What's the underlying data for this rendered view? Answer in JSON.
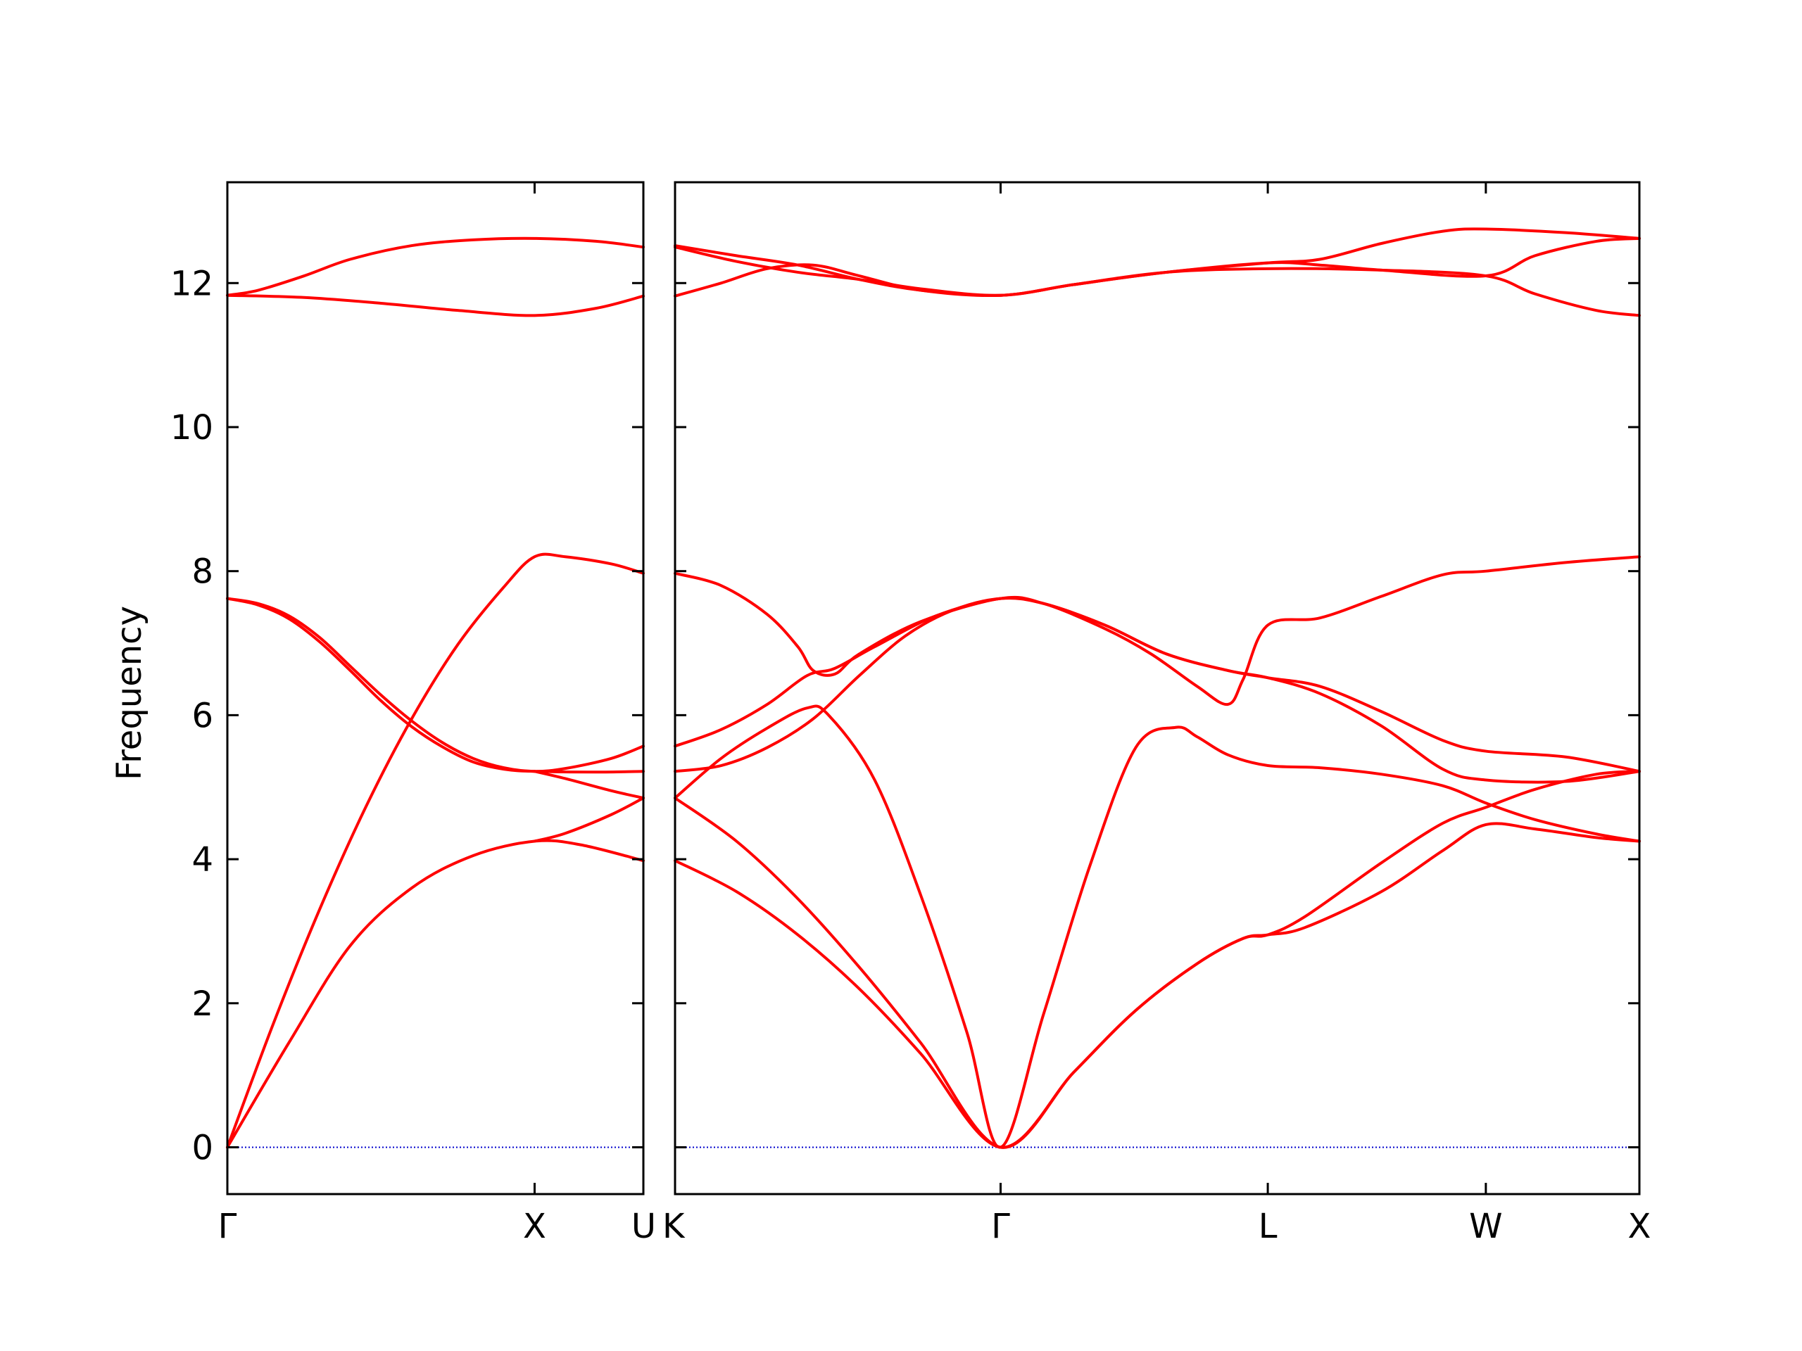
{
  "chart_data": {
    "type": "line",
    "ylabel": "Frequency",
    "ylim": [
      -0.65,
      13.4
    ],
    "yticks": [
      0,
      2,
      4,
      6,
      8,
      10,
      12
    ],
    "colors": {
      "band": "#ff0000",
      "zero_line": "#0000cc",
      "axes": "#000000"
    },
    "grid": false,
    "panels": [
      {
        "name": "panel-left",
        "xlim": [
          0,
          1.354
        ],
        "ticks": [
          {
            "x": 0,
            "label": "Γ"
          },
          {
            "x": 1.0,
            "label": "X"
          },
          {
            "x": 1.354,
            "label": "U"
          }
        ],
        "bands": [
          [
            [
              0,
              0
            ],
            [
              0.15,
              1.72
            ],
            [
              0.3,
              3.3
            ],
            [
              0.45,
              4.72
            ],
            [
              0.6,
              5.95
            ],
            [
              0.75,
              6.98
            ],
            [
              0.9,
              7.78
            ],
            [
              1.0,
              8.2
            ],
            [
              1.1,
              8.2
            ],
            [
              1.25,
              8.1
            ],
            [
              1.354,
              7.97
            ]
          ],
          [
            [
              0,
              0
            ],
            [
              0.2,
              1.45
            ],
            [
              0.4,
              2.8
            ],
            [
              0.6,
              3.6
            ],
            [
              0.8,
              4.05
            ],
            [
              1.0,
              4.25
            ],
            [
              1.15,
              4.2
            ],
            [
              1.354,
              3.98
            ]
          ],
          [
            [
              0,
              7.62
            ],
            [
              0.1,
              7.55
            ],
            [
              0.2,
              7.38
            ],
            [
              0.3,
              7.08
            ],
            [
              0.4,
              6.68
            ],
            [
              0.5,
              6.28
            ],
            [
              0.6,
              5.92
            ],
            [
              0.7,
              5.62
            ],
            [
              0.8,
              5.4
            ],
            [
              0.9,
              5.27
            ],
            [
              1.0,
              5.22
            ],
            [
              1.1,
              5.26
            ],
            [
              1.25,
              5.4
            ],
            [
              1.354,
              5.57
            ]
          ],
          [
            [
              0,
              7.62
            ],
            [
              0.1,
              7.53
            ],
            [
              0.2,
              7.34
            ],
            [
              0.3,
              7.02
            ],
            [
              0.4,
              6.62
            ],
            [
              0.5,
              6.2
            ],
            [
              0.6,
              5.84
            ],
            [
              0.7,
              5.56
            ],
            [
              0.8,
              5.35
            ],
            [
              0.9,
              5.25
            ],
            [
              1.0,
              5.22
            ],
            [
              1.2,
              5.21
            ],
            [
              1.354,
              5.22
            ]
          ],
          [
            [
              0,
              11.83
            ],
            [
              0.25,
              11.8
            ],
            [
              0.5,
              11.72
            ],
            [
              0.75,
              11.62
            ],
            [
              1.0,
              11.55
            ],
            [
              1.2,
              11.65
            ],
            [
              1.354,
              11.82
            ]
          ],
          [
            [
              0,
              11.83
            ],
            [
              0.1,
              11.9
            ],
            [
              0.25,
              12.1
            ],
            [
              0.4,
              12.33
            ],
            [
              0.6,
              12.52
            ],
            [
              0.8,
              12.6
            ],
            [
              1.0,
              12.62
            ],
            [
              1.2,
              12.58
            ],
            [
              1.354,
              12.5
            ]
          ]
        ],
        "extra_lines": [
          [
            [
              1.0,
              4.25
            ],
            [
              1.1,
              4.36
            ],
            [
              1.25,
              4.62
            ],
            [
              1.354,
              4.85
            ]
          ],
          [
            [
              1.0,
              5.22
            ],
            [
              1.1,
              5.12
            ],
            [
              1.25,
              4.95
            ],
            [
              1.354,
              4.85
            ]
          ]
        ]
      },
      {
        "name": "panel-right",
        "xlim": [
          0,
          3.14
        ],
        "ticks": [
          {
            "x": 0,
            "label": "K"
          },
          {
            "x": 1.06,
            "label": "Γ"
          },
          {
            "x": 1.93,
            "label": "L"
          },
          {
            "x": 2.64,
            "label": "W"
          },
          {
            "x": 3.14,
            "label": "X"
          }
        ],
        "bands": [
          [
            [
              0,
              3.98
            ],
            [
              0.2,
              3.55
            ],
            [
              0.4,
              2.95
            ],
            [
              0.6,
              2.2
            ],
            [
              0.8,
              1.3
            ],
            [
              1.06,
              0
            ],
            [
              1.3,
              1.05
            ],
            [
              1.5,
              1.9
            ],
            [
              1.7,
              2.55
            ],
            [
              1.85,
              2.9
            ],
            [
              1.93,
              2.95
            ],
            [
              2.05,
              3.05
            ],
            [
              2.3,
              3.55
            ],
            [
              2.5,
              4.12
            ],
            [
              2.64,
              4.48
            ],
            [
              2.8,
              4.42
            ],
            [
              3.0,
              4.3
            ],
            [
              3.14,
              4.25
            ]
          ],
          [
            [
              0,
              4.85
            ],
            [
              0.2,
              4.25
            ],
            [
              0.4,
              3.45
            ],
            [
              0.6,
              2.5
            ],
            [
              0.8,
              1.45
            ],
            [
              1.06,
              0
            ],
            [
              1.3,
              1.05
            ],
            [
              1.5,
              1.9
            ],
            [
              1.7,
              2.55
            ],
            [
              1.85,
              2.9
            ],
            [
              1.93,
              2.95
            ],
            [
              2.05,
              3.2
            ],
            [
              2.3,
              3.95
            ],
            [
              2.5,
              4.5
            ],
            [
              2.64,
              4.72
            ],
            [
              2.8,
              4.97
            ],
            [
              3.0,
              5.18
            ],
            [
              3.14,
              5.22
            ]
          ],
          [
            [
              0,
              4.85
            ],
            [
              0.15,
              5.4
            ],
            [
              0.3,
              5.82
            ],
            [
              0.43,
              6.1
            ],
            [
              0.5,
              6.0
            ],
            [
              0.65,
              5.1
            ],
            [
              0.8,
              3.5
            ],
            [
              0.95,
              1.6
            ],
            [
              1.06,
              0
            ],
            [
              1.2,
              1.85
            ],
            [
              1.35,
              3.9
            ],
            [
              1.5,
              5.55
            ],
            [
              1.63,
              5.83
            ],
            [
              1.7,
              5.7
            ],
            [
              1.8,
              5.45
            ],
            [
              1.93,
              5.3
            ],
            [
              2.1,
              5.27
            ],
            [
              2.3,
              5.18
            ],
            [
              2.5,
              5.02
            ],
            [
              2.64,
              4.78
            ],
            [
              2.8,
              4.55
            ],
            [
              3.0,
              4.35
            ],
            [
              3.14,
              4.25
            ]
          ],
          [
            [
              0,
              5.22
            ],
            [
              0.15,
              5.3
            ],
            [
              0.3,
              5.55
            ],
            [
              0.45,
              5.95
            ],
            [
              0.6,
              6.55
            ],
            [
              0.75,
              7.1
            ],
            [
              0.9,
              7.45
            ],
            [
              1.06,
              7.62
            ],
            [
              1.2,
              7.55
            ],
            [
              1.4,
              7.25
            ],
            [
              1.6,
              6.85
            ],
            [
              1.8,
              6.62
            ],
            [
              1.93,
              6.52
            ],
            [
              2.1,
              6.3
            ],
            [
              2.3,
              5.85
            ],
            [
              2.5,
              5.25
            ],
            [
              2.64,
              5.1
            ],
            [
              2.9,
              5.08
            ],
            [
              3.14,
              5.22
            ]
          ],
          [
            [
              0,
              5.57
            ],
            [
              0.15,
              5.8
            ],
            [
              0.3,
              6.15
            ],
            [
              0.43,
              6.55
            ],
            [
              0.52,
              6.65
            ],
            [
              0.65,
              6.95
            ],
            [
              0.85,
              7.38
            ],
            [
              1.06,
              7.62
            ],
            [
              1.2,
              7.55
            ],
            [
              1.4,
              7.25
            ],
            [
              1.6,
              6.85
            ],
            [
              1.8,
              6.62
            ],
            [
              1.93,
              6.52
            ],
            [
              2.1,
              6.4
            ],
            [
              2.3,
              6.05
            ],
            [
              2.5,
              5.65
            ],
            [
              2.64,
              5.5
            ],
            [
              2.9,
              5.42
            ],
            [
              3.14,
              5.22
            ]
          ],
          [
            [
              0,
              7.97
            ],
            [
              0.15,
              7.8
            ],
            [
              0.3,
              7.4
            ],
            [
              0.4,
              6.95
            ],
            [
              0.45,
              6.62
            ],
            [
              0.52,
              6.57
            ],
            [
              0.6,
              6.85
            ],
            [
              0.8,
              7.3
            ],
            [
              1.06,
              7.62
            ],
            [
              1.2,
              7.55
            ],
            [
              1.4,
              7.2
            ],
            [
              1.55,
              6.85
            ],
            [
              1.7,
              6.4
            ],
            [
              1.8,
              6.15
            ],
            [
              1.85,
              6.5
            ],
            [
              1.93,
              7.25
            ],
            [
              2.1,
              7.35
            ],
            [
              2.3,
              7.65
            ],
            [
              2.5,
              7.95
            ],
            [
              2.64,
              8.0
            ],
            [
              2.9,
              8.12
            ],
            [
              3.14,
              8.2
            ]
          ],
          [
            [
              0,
              11.82
            ],
            [
              0.15,
              12.0
            ],
            [
              0.3,
              12.2
            ],
            [
              0.45,
              12.25
            ],
            [
              0.6,
              12.1
            ],
            [
              0.8,
              11.9
            ],
            [
              1.06,
              11.83
            ],
            [
              1.3,
              11.98
            ],
            [
              1.6,
              12.15
            ],
            [
              1.93,
              12.2
            ],
            [
              2.3,
              12.18
            ],
            [
              2.64,
              12.1
            ],
            [
              2.8,
              11.85
            ],
            [
              3.0,
              11.62
            ],
            [
              3.14,
              11.55
            ]
          ],
          [
            [
              0,
              12.5
            ],
            [
              0.2,
              12.3
            ],
            [
              0.4,
              12.15
            ],
            [
              0.6,
              12.05
            ],
            [
              0.8,
              11.92
            ],
            [
              1.06,
              11.83
            ],
            [
              1.3,
              11.98
            ],
            [
              1.6,
              12.15
            ],
            [
              1.93,
              12.28
            ],
            [
              2.1,
              12.25
            ],
            [
              2.3,
              12.18
            ],
            [
              2.64,
              12.1
            ],
            [
              2.8,
              12.38
            ],
            [
              3.0,
              12.58
            ],
            [
              3.14,
              12.62
            ]
          ],
          [
            [
              0,
              12.52
            ],
            [
              0.2,
              12.38
            ],
            [
              0.4,
              12.25
            ],
            [
              0.6,
              12.05
            ],
            [
              0.8,
              11.9
            ],
            [
              1.06,
              11.83
            ],
            [
              1.3,
              11.98
            ],
            [
              1.6,
              12.15
            ],
            [
              1.93,
              12.28
            ],
            [
              2.1,
              12.33
            ],
            [
              2.3,
              12.55
            ],
            [
              2.5,
              12.72
            ],
            [
              2.64,
              12.75
            ],
            [
              2.9,
              12.7
            ],
            [
              3.14,
              12.62
            ]
          ]
        ]
      }
    ]
  }
}
